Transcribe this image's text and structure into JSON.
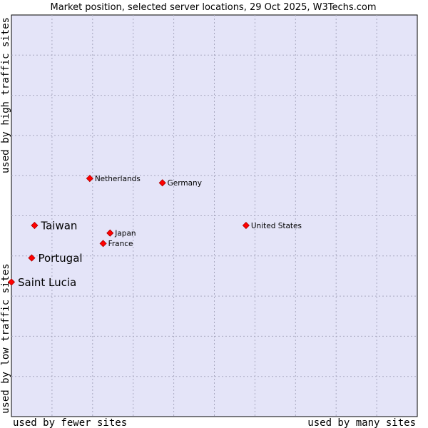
{
  "chart_data": {
    "type": "scatter",
    "title": "Market position, selected server locations, 29 Oct 2025, W3Techs.com",
    "xlabel_low": "used by fewer sites",
    "xlabel_high": "used by many sites",
    "ylabel_low": "used by low traffic sites",
    "ylabel_high": "used by high traffic sites",
    "xlim": [
      0,
      100
    ],
    "ylim": [
      0,
      100
    ],
    "grid": true,
    "colors": {
      "plot_bg": "#e4e4f8",
      "grid": "#a8a8c0",
      "marker": "#ff0000",
      "marker_edge": "#aa0000"
    },
    "points": [
      {
        "label": "Netherlands",
        "x": 19.3,
        "y": 59.3,
        "highlight": false
      },
      {
        "label": "Germany",
        "x": 37.2,
        "y": 58.2,
        "highlight": false
      },
      {
        "label": "Taiwan",
        "x": 5.7,
        "y": 47.6,
        "highlight": true
      },
      {
        "label": "Japan",
        "x": 24.3,
        "y": 45.7,
        "highlight": false
      },
      {
        "label": "United States",
        "x": 57.8,
        "y": 47.6,
        "highlight": false
      },
      {
        "label": "France",
        "x": 22.6,
        "y": 43.1,
        "highlight": false
      },
      {
        "label": "Portugal",
        "x": 5.0,
        "y": 39.5,
        "highlight": true
      },
      {
        "label": "Saint Lucia",
        "x": 0.0,
        "y": 33.5,
        "highlight": true
      }
    ]
  }
}
